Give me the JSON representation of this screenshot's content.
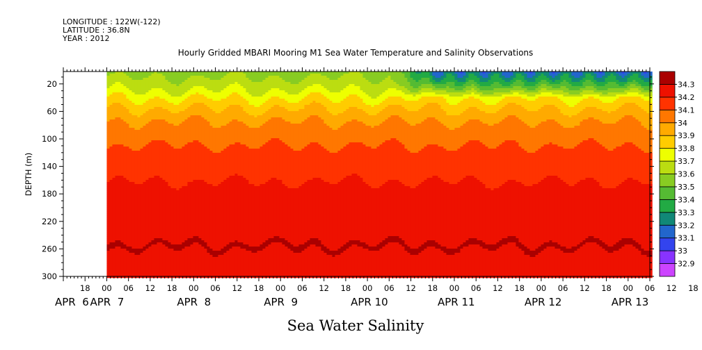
{
  "header": {
    "longitude": "LONGITUDE : 122W(-122)",
    "latitude": "LATITUDE : 36.8N",
    "year": "YEAR : 2012"
  },
  "chart_data": {
    "type": "heatmap",
    "title": "Hourly Gridded MBARI Mooring M1 Sea Water Temperature and Salinity Observations",
    "xlabel": "Sea Water Salinity",
    "ylabel": "DEPTH (m)",
    "ylim": [
      300,
      2
    ],
    "y_reversed": true,
    "y_ticks": [
      20,
      60,
      100,
      140,
      180,
      220,
      260,
      300
    ],
    "x_range_hours": [
      "2012-04-06T12:00",
      "2012-04-13T06:00"
    ],
    "data_start": "2012-04-07T00:00",
    "hour_ticks": [
      "18",
      "00",
      "06",
      "12",
      "18",
      "00",
      "06",
      "12",
      "18",
      "00",
      "06",
      "12",
      "18",
      "00",
      "06",
      "12",
      "18",
      "00",
      "06",
      "12",
      "18",
      "00",
      "06",
      "12",
      "18",
      "00",
      "06",
      "12",
      "18",
      "00"
    ],
    "day_labels": [
      "APR  6",
      "APR  7",
      "APR  8",
      "APR  9",
      "APR 10",
      "APR 11",
      "APR 12",
      "APR 13"
    ],
    "colorbar": {
      "levels": [
        32.9,
        33,
        33.1,
        33.2,
        33.3,
        33.4,
        33.5,
        33.6,
        33.7,
        33.8,
        33.9,
        34,
        34.1,
        34.2,
        34.3
      ],
      "level_labels": [
        "32.9",
        "33",
        "33.1",
        "33.2",
        "33.3",
        "33.4",
        "33.5",
        "33.6",
        "33.7",
        "33.8",
        "33.9",
        "34",
        "34.1",
        "34.2",
        "34.3"
      ],
      "colors": [
        "#cc44ff",
        "#8833ff",
        "#3344ee",
        "#2266cc",
        "#118877",
        "#22aa44",
        "#55bb33",
        "#88cc22",
        "#bbdd11",
        "#eeff00",
        "#ffcc00",
        "#ffaa00",
        "#ff7700",
        "#ff3300",
        "#ee1100",
        "#aa0000"
      ]
    },
    "depth_profile": [
      {
        "depth": 2,
        "value": 33.58
      },
      {
        "depth": 20,
        "value": 33.62
      },
      {
        "depth": 35,
        "value": 33.75
      },
      {
        "depth": 50,
        "value": 33.86
      },
      {
        "depth": 65,
        "value": 33.95
      },
      {
        "depth": 80,
        "value": 34.02
      },
      {
        "depth": 100,
        "value": 34.08
      },
      {
        "depth": 120,
        "value": 34.12
      },
      {
        "depth": 140,
        "value": 34.17
      },
      {
        "depth": 170,
        "value": 34.21
      },
      {
        "depth": 200,
        "value": 34.23
      },
      {
        "depth": 225,
        "value": 34.25
      },
      {
        "depth": 245,
        "value": 34.28
      },
      {
        "depth": 255,
        "value": 34.31
      },
      {
        "depth": 270,
        "value": 34.28
      },
      {
        "depth": 300,
        "value": 34.25
      }
    ],
    "surface_freshening_start": "2012-04-10T06:00",
    "surface_freshening_min_value": 33.05
  }
}
